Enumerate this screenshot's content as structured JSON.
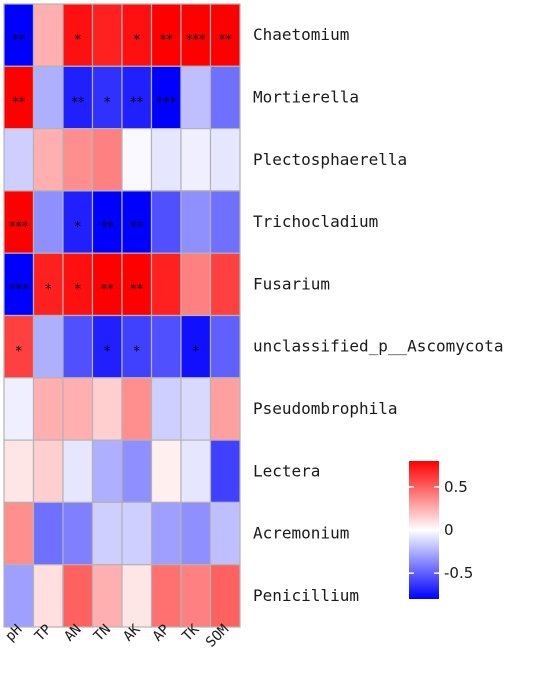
{
  "chart_data": {
    "type": "heatmap",
    "rows": [
      "Chaetomium",
      "Mortierella",
      "Plectosphaerella",
      "Trichocladium",
      "Fusarium",
      "unclassified_p__Ascomycota",
      "Pseudombrophila",
      "Lectera",
      "Acremonium",
      "Penicillium"
    ],
    "columns": [
      "pH",
      "TP",
      "AN",
      "TN",
      "AK",
      "AP",
      "TK",
      "SOM"
    ],
    "values": [
      [
        -0.8,
        0.25,
        0.75,
        0.7,
        0.75,
        0.85,
        0.9,
        0.85
      ],
      [
        0.85,
        -0.25,
        -0.7,
        -0.65,
        -0.7,
        -0.85,
        -0.2,
        -0.45
      ],
      [
        -0.15,
        0.25,
        0.35,
        0.4,
        -0.02,
        -0.08,
        -0.05,
        -0.08
      ],
      [
        0.9,
        -0.35,
        -0.7,
        -0.8,
        -0.8,
        -0.55,
        -0.35,
        -0.45
      ],
      [
        -0.85,
        0.7,
        0.75,
        0.85,
        0.85,
        0.7,
        0.4,
        0.6
      ],
      [
        0.6,
        -0.25,
        -0.55,
        -0.7,
        -0.6,
        -0.55,
        -0.75,
        -0.5
      ],
      [
        -0.05,
        0.25,
        0.25,
        0.15,
        0.35,
        -0.15,
        -0.12,
        0.3
      ],
      [
        0.08,
        0.15,
        -0.08,
        -0.25,
        -0.35,
        0.05,
        -0.08,
        -0.6
      ],
      [
        0.35,
        -0.45,
        -0.4,
        -0.15,
        -0.15,
        -0.3,
        -0.35,
        -0.2
      ],
      [
        -0.3,
        0.1,
        0.5,
        0.25,
        0.08,
        0.45,
        0.4,
        0.5
      ]
    ],
    "significance": [
      [
        "**",
        "",
        "*",
        "",
        "*",
        "**",
        "***",
        "**"
      ],
      [
        "**",
        "",
        "**",
        "*",
        "**",
        "***",
        "",
        ""
      ],
      [
        "",
        "",
        "",
        "",
        "",
        "",
        "",
        ""
      ],
      [
        "***",
        "",
        "*",
        "**",
        "**",
        "",
        "",
        ""
      ],
      [
        "***",
        "*",
        "*",
        "**",
        "**",
        "",
        "",
        ""
      ],
      [
        "*",
        "",
        "",
        "*",
        "*",
        "",
        "*",
        ""
      ],
      [
        "",
        "",
        "",
        "",
        "",
        "",
        "",
        ""
      ],
      [
        "",
        "",
        "",
        "",
        "",
        "",
        "",
        ""
      ],
      [
        "",
        "",
        "",
        "",
        "",
        "",
        "",
        ""
      ],
      [
        "",
        "",
        "",
        "",
        "",
        "",
        "",
        ""
      ]
    ],
    "color_range": [
      -0.8,
      0.8
    ],
    "colors": {
      "low": "#0000ff",
      "mid": "#ffffff",
      "high": "#ff0000",
      "cell_border": "#b3b3b3"
    },
    "legend": {
      "placement": "bottom-right",
      "ticks": [
        {
          "value": 0.5,
          "label": "0.5"
        },
        {
          "value": 0,
          "label": "0"
        },
        {
          "value": -0.5,
          "label": "-0.5"
        }
      ]
    },
    "title": "",
    "xlabel": "",
    "ylabel": ""
  }
}
